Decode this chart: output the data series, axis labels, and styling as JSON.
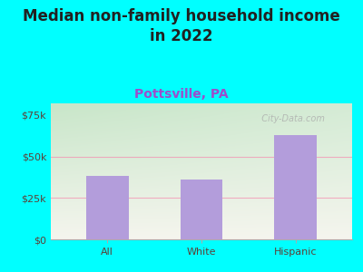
{
  "title_line1": "Median non-family household income",
  "title_line2": "in 2022",
  "subtitle": "Pottsville, PA",
  "categories": [
    "All",
    "White",
    "Hispanic"
  ],
  "values": [
    38000,
    36000,
    63000
  ],
  "bar_color": "#b39ddb",
  "background_outer": "#00FFFF",
  "bg_top_left": "#c8e6c9",
  "bg_top_right": "#e0f0e0",
  "bg_bottom": "#f5f5ee",
  "yticks": [
    0,
    25000,
    50000,
    75000
  ],
  "ytick_labels": [
    "$0",
    "$25k",
    "$50k",
    "$75k"
  ],
  "ylim": [
    0,
    82000
  ],
  "grid_color": "#f48fb1",
  "grid_alpha": 0.7,
  "title_fontsize": 12,
  "subtitle_fontsize": 10,
  "tick_fontsize": 8,
  "watermark": "  City-Data.com",
  "title_color": "#212121",
  "subtitle_color": "#9c4dcc",
  "tick_label_color": "#5d4037"
}
